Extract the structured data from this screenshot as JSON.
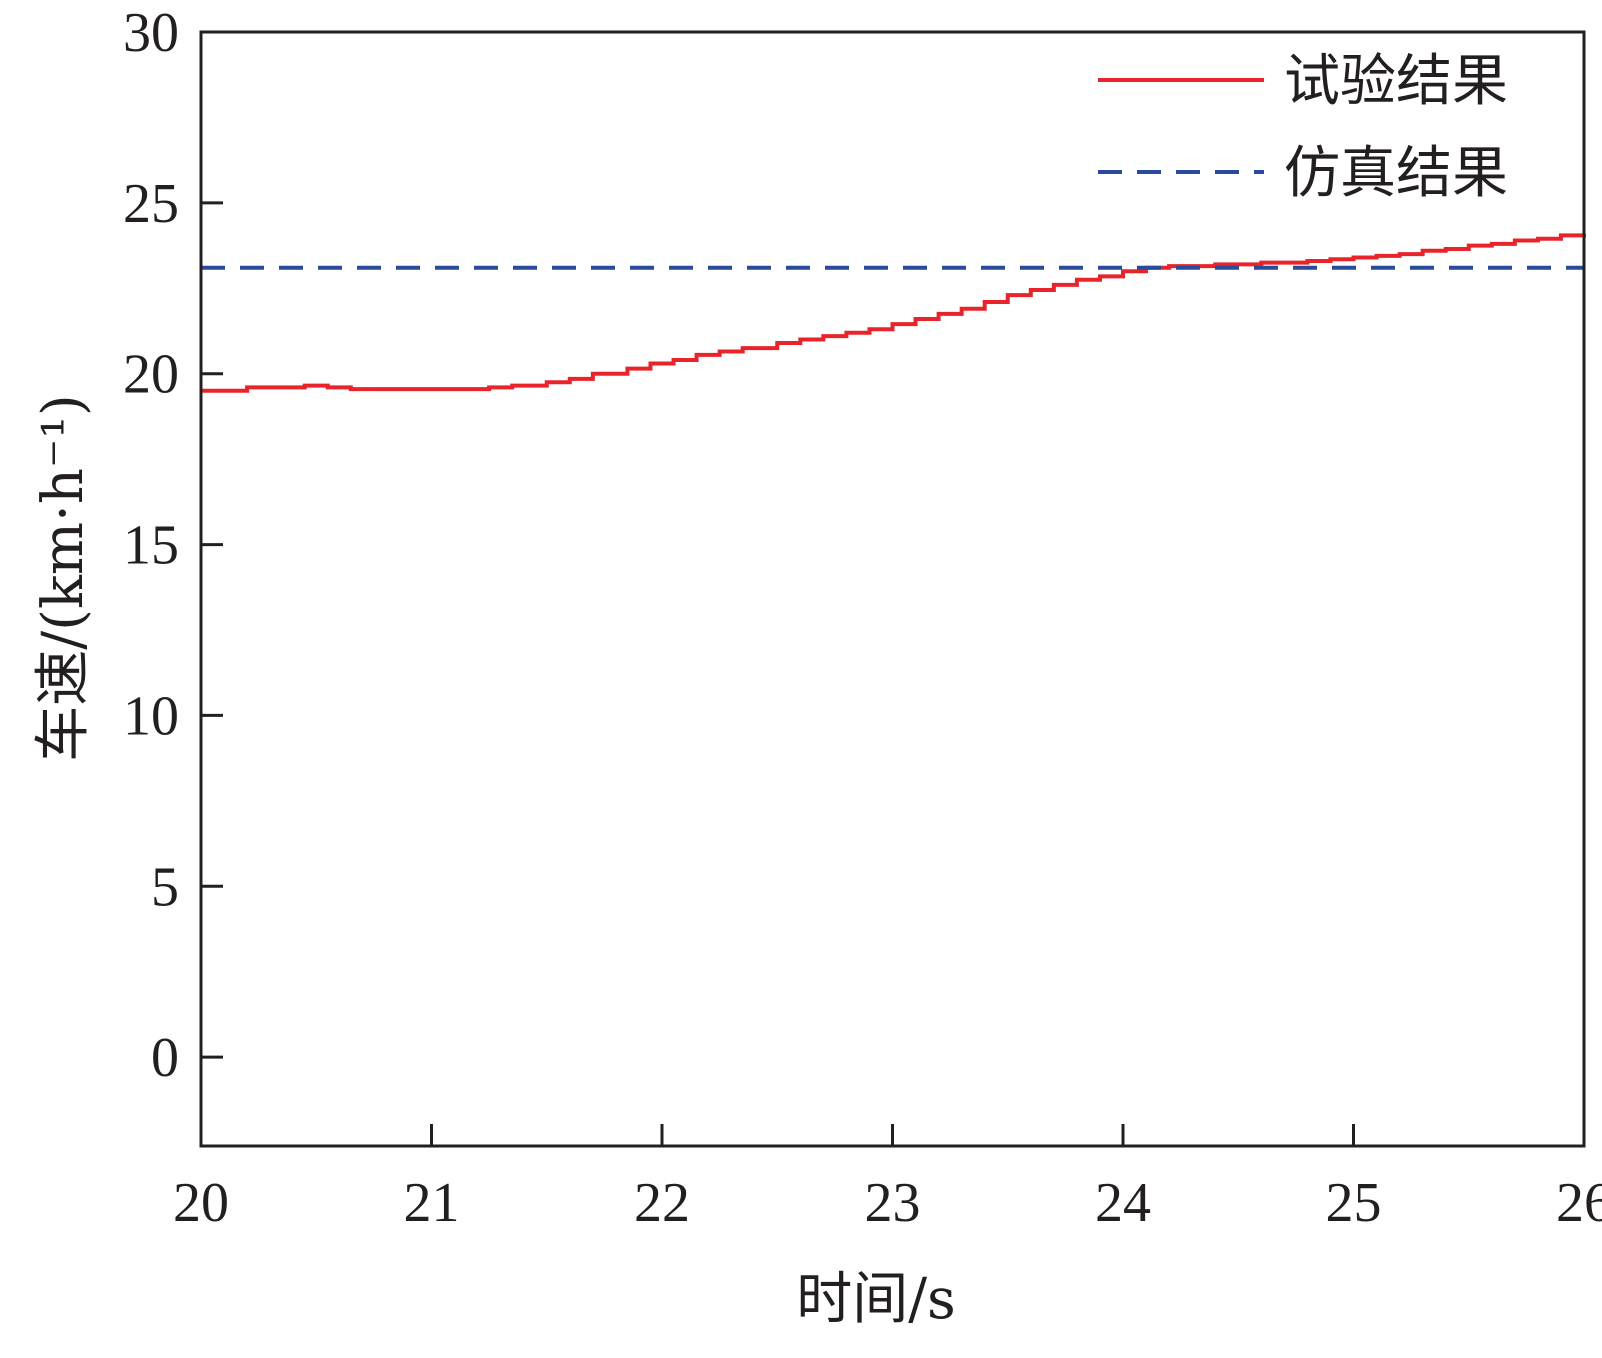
{
  "chart_data": {
    "type": "line",
    "title": "",
    "xlabel": "时间/s",
    "ylabel": "车速/(km·h⁻¹)",
    "xlim": [
      20,
      26
    ],
    "ylim": [
      -2.6,
      30
    ],
    "xticks": [
      20,
      21,
      22,
      23,
      24,
      25,
      26
    ],
    "yticks": [
      0,
      5,
      10,
      15,
      20,
      25,
      30
    ],
    "grid": false,
    "legend_position": "top-right",
    "series": [
      {
        "name": "试验结果",
        "color": "#e8242a",
        "style": "solid-step",
        "x": [
          20.0,
          20.2,
          20.45,
          20.55,
          20.65,
          20.9,
          21.1,
          21.25,
          21.35,
          21.5,
          21.6,
          21.7,
          21.85,
          21.95,
          22.05,
          22.15,
          22.25,
          22.35,
          22.5,
          22.6,
          22.7,
          22.8,
          22.9,
          23.0,
          23.1,
          23.2,
          23.3,
          23.4,
          23.5,
          23.6,
          23.7,
          23.8,
          23.9,
          24.0,
          24.1,
          24.2,
          24.3,
          24.4,
          24.5,
          24.6,
          24.7,
          24.8,
          24.9,
          25.0,
          25.1,
          25.2,
          25.3,
          25.4,
          25.5,
          25.6,
          25.7,
          25.8,
          25.9,
          26.0
        ],
        "y": [
          19.5,
          19.6,
          19.65,
          19.6,
          19.55,
          19.55,
          19.55,
          19.6,
          19.65,
          19.75,
          19.85,
          20.0,
          20.15,
          20.3,
          20.4,
          20.55,
          20.65,
          20.75,
          20.9,
          21.0,
          21.1,
          21.2,
          21.3,
          21.45,
          21.6,
          21.75,
          21.9,
          22.1,
          22.3,
          22.45,
          22.6,
          22.75,
          22.85,
          23.0,
          23.1,
          23.15,
          23.15,
          23.2,
          23.2,
          23.25,
          23.25,
          23.3,
          23.35,
          23.4,
          23.45,
          23.5,
          23.6,
          23.65,
          23.75,
          23.8,
          23.9,
          23.95,
          24.05,
          24.1
        ]
      },
      {
        "name": "仿真结果",
        "color": "#2a4b9b",
        "style": "dashed",
        "x": [
          20,
          26
        ],
        "y": [
          23.1,
          23.1
        ]
      }
    ]
  }
}
